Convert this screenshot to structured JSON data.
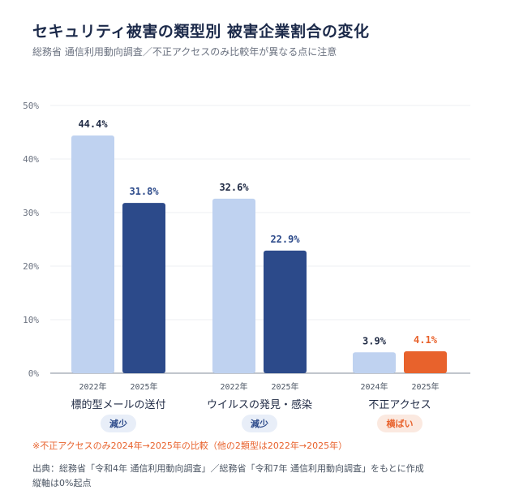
{
  "title": "セキュリティ被害の類型別 被害企業割合の変化",
  "subtitle": "総務省 通信利用動向調査／不正アクセスのみ比較年が異なる点に注意",
  "chart_data": {
    "type": "bar",
    "ylim": [
      0,
      50
    ],
    "yticks": [
      "0%",
      "10%",
      "20%",
      "30%",
      "40%",
      "50%"
    ],
    "ytick_values": [
      0,
      10,
      20,
      30,
      40,
      50
    ],
    "grid": true,
    "groups": [
      {
        "category": "標的型メールの送付",
        "bars": [
          {
            "year": "2022年",
            "value": 44.4,
            "label": "44.4%",
            "color": "#bfd2f0",
            "label_color": "#1f2a44"
          },
          {
            "year": "2025年",
            "value": 31.8,
            "label": "31.8%",
            "color": "#2c4a8a",
            "label_color": "#2c4a8a"
          }
        ],
        "badge": {
          "text": "減少",
          "bg": "#e8eef8",
          "color": "#2c4a8a"
        }
      },
      {
        "category": "ウイルスの発見・感染",
        "bars": [
          {
            "year": "2022年",
            "value": 32.6,
            "label": "32.6%",
            "color": "#bfd2f0",
            "label_color": "#1f2a44"
          },
          {
            "year": "2025年",
            "value": 22.9,
            "label": "22.9%",
            "color": "#2c4a8a",
            "label_color": "#2c4a8a"
          }
        ],
        "badge": {
          "text": "減少",
          "bg": "#e8eef8",
          "color": "#2c4a8a"
        }
      },
      {
        "category": "不正アクセス",
        "bars": [
          {
            "year": "2024年",
            "value": 3.9,
            "label": "3.9%",
            "color": "#bfd2f0",
            "label_color": "#1f2a44"
          },
          {
            "year": "2025年",
            "value": 4.1,
            "label": "4.1%",
            "color": "#e8622c",
            "label_color": "#e8622c"
          }
        ],
        "badge": {
          "text": "横ばい",
          "bg": "#fbe9e0",
          "color": "#e8622c"
        }
      }
    ]
  },
  "note": "※不正アクセスのみ2024年→2025年の比較（他の2類型は2022年→2025年）",
  "source_line1": "出典：総務省「令和4年 通信利用動向調査」／総務省「令和7年 通信利用動向調査」をもとに作成",
  "source_line2": "縦軸は0%起点"
}
